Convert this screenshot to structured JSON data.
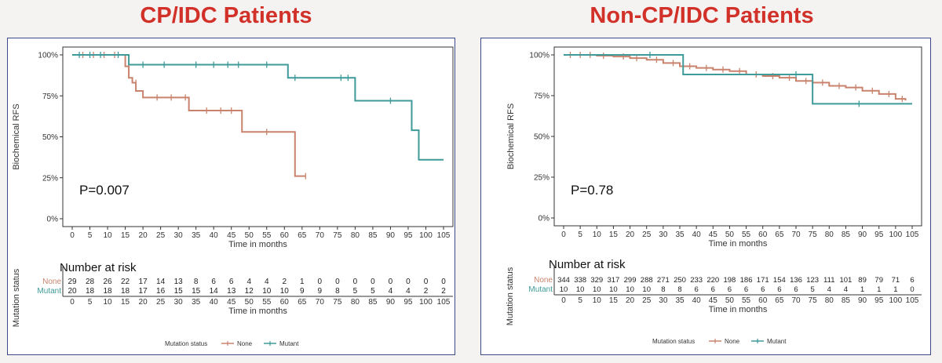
{
  "colors": {
    "title": "#d2312a",
    "none": "#c9836d",
    "mutant": "#3f9a9a",
    "axis": "#333333",
    "frame": "#3b4a8a"
  },
  "titles": {
    "left": "CP/IDC Patients",
    "right": "Non-CP/IDC Patients"
  },
  "chart_data": [
    {
      "type": "line",
      "title": "CP/IDC Patients",
      "xlabel": "Time in months",
      "ylabel": "Biochemical RFS",
      "xlim": [
        0,
        105
      ],
      "ylim": [
        0,
        100
      ],
      "x_ticks": [
        "0",
        "5",
        "10",
        "15",
        "20",
        "25",
        "30",
        "35",
        "40",
        "45",
        "50",
        "55",
        "60",
        "65",
        "70",
        "75",
        "80",
        "85",
        "90",
        "95",
        "100",
        "105"
      ],
      "y_ticks": [
        "0%",
        "25%",
        "50%",
        "75%",
        "100%"
      ],
      "annotation": "P=0.007",
      "series": [
        {
          "name": "None",
          "color": "#c9836d",
          "step": true,
          "x": [
            0,
            15,
            16,
            17,
            18,
            20,
            23,
            33,
            48,
            63,
            66
          ],
          "y": [
            100,
            93,
            86,
            83,
            78,
            74,
            74,
            66,
            53,
            26,
            26
          ],
          "censors_x": [
            3,
            6,
            9,
            12,
            18,
            24,
            28,
            32,
            38,
            42,
            45,
            55,
            66
          ],
          "censors_y": [
            100,
            100,
            100,
            100,
            83,
            74,
            74,
            74,
            66,
            66,
            66,
            53,
            26
          ]
        },
        {
          "name": "Mutant",
          "color": "#3f9a9a",
          "step": true,
          "x": [
            0,
            16,
            61,
            80,
            96,
            98,
            105
          ],
          "y": [
            100,
            94,
            86,
            72,
            54,
            36,
            36
          ],
          "censors_x": [
            2,
            5,
            8,
            13,
            20,
            26,
            35,
            40,
            44,
            47,
            55,
            63,
            76,
            78,
            90
          ],
          "censors_y": [
            100,
            100,
            100,
            100,
            94,
            94,
            94,
            94,
            94,
            94,
            94,
            86,
            86,
            86,
            72
          ]
        }
      ],
      "risk_table": {
        "title": "Number at risk",
        "legend_label": "Mutation status",
        "xlabel": "Time in months",
        "rows": [
          {
            "name": "None",
            "values": [
              "29",
              "28",
              "26",
              "22",
              "17",
              "14",
              "13",
              "8",
              "6",
              "6",
              "4",
              "4",
              "2",
              "1",
              "0",
              "0",
              "0",
              "0",
              "0",
              "0",
              "0",
              "0"
            ]
          },
          {
            "name": "Mutant",
            "values": [
              "20",
              "18",
              "18",
              "18",
              "17",
              "16",
              "15",
              "15",
              "14",
              "13",
              "12",
              "10",
              "10",
              "9",
              "9",
              "8",
              "5",
              "5",
              "4",
              "4",
              "2",
              "2"
            ]
          }
        ]
      },
      "legend": {
        "title": "Mutation status",
        "items": [
          "None",
          "Mutant"
        ],
        "placement": "bottom"
      }
    },
    {
      "type": "line",
      "title": "Non-CP/IDC Patients",
      "xlabel": "Time in months",
      "ylabel": "Biochemical RFS",
      "xlim": [
        0,
        105
      ],
      "ylim": [
        0,
        100
      ],
      "x_ticks": [
        "0",
        "5",
        "10",
        "15",
        "20",
        "25",
        "30",
        "35",
        "40",
        "45",
        "50",
        "55",
        "60",
        "65",
        "70",
        "75",
        "80",
        "85",
        "90",
        "95",
        "100",
        "105"
      ],
      "y_ticks": [
        "0%",
        "25%",
        "50%",
        "75%",
        "100%"
      ],
      "annotation": "P=0.78",
      "series": [
        {
          "name": "None",
          "color": "#c9836d",
          "step": true,
          "x": [
            0,
            10,
            15,
            20,
            25,
            30,
            35,
            40,
            45,
            50,
            55,
            60,
            65,
            70,
            75,
            80,
            85,
            90,
            95,
            100,
            103
          ],
          "y": [
            100,
            99.5,
            99,
            98,
            97,
            95,
            93,
            92,
            91,
            90,
            88,
            87,
            86,
            84,
            83,
            81,
            80,
            78,
            76,
            73,
            72
          ],
          "censors_x": [
            2,
            5,
            8,
            12,
            18,
            22,
            28,
            33,
            38,
            43,
            48,
            53,
            58,
            63,
            68,
            73,
            78,
            83,
            88,
            93,
            98,
            102
          ],
          "censors_y": [
            100,
            100,
            100,
            99.5,
            99,
            98,
            97,
            95,
            93,
            92,
            91,
            90,
            88,
            87,
            86,
            84,
            83,
            81,
            80,
            78,
            76,
            73
          ]
        },
        {
          "name": "Mutant",
          "color": "#3f9a9a",
          "step": true,
          "x": [
            0,
            36,
            75,
            105
          ],
          "y": [
            100,
            88,
            70,
            70
          ],
          "censors_x": [
            26,
            70,
            89
          ],
          "censors_y": [
            100,
            88,
            70
          ]
        }
      ],
      "risk_table": {
        "title": "Number at risk",
        "legend_label": "Mutation status",
        "xlabel": "Time in months",
        "rows": [
          {
            "name": "None",
            "values": [
              "344",
              "338",
              "329",
              "317",
              "299",
              "288",
              "271",
              "250",
              "233",
              "220",
              "198",
              "186",
              "171",
              "154",
              "136",
              "123",
              "111",
              "101",
              "89",
              "79",
              "71",
              "6"
            ]
          },
          {
            "name": "Mutant",
            "values": [
              "10",
              "10",
              "10",
              "10",
              "10",
              "10",
              "8",
              "8",
              "6",
              "6",
              "6",
              "6",
              "6",
              "6",
              "6",
              "5",
              "4",
              "4",
              "1",
              "1",
              "1",
              "0"
            ]
          }
        ]
      },
      "legend": {
        "title": "Mutation status",
        "items": [
          "None",
          "Mutant"
        ],
        "placement": "bottom"
      }
    }
  ]
}
